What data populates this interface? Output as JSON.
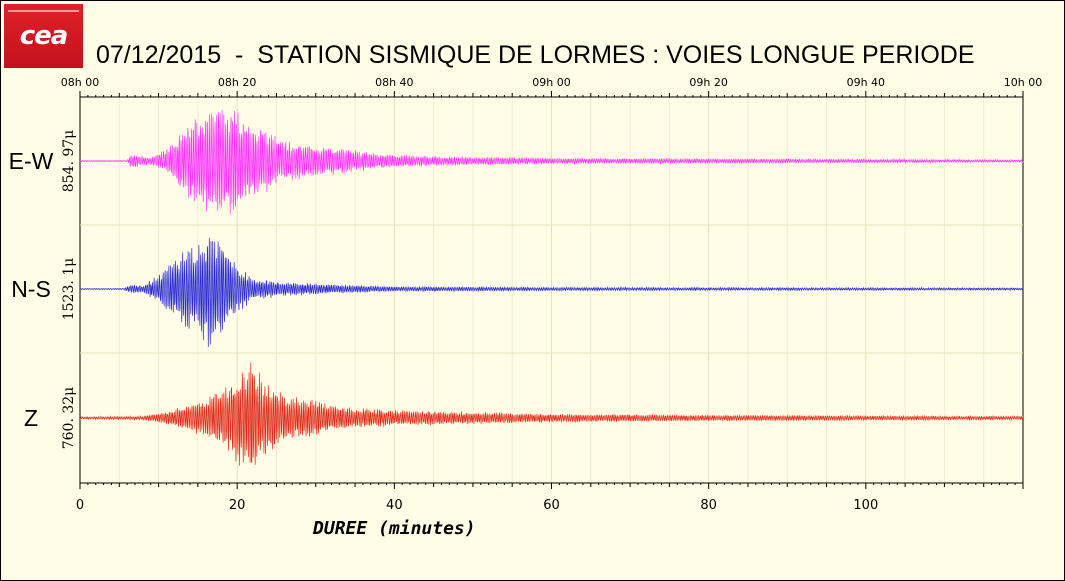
{
  "logo": {
    "text": "cea"
  },
  "title": "07/12/2015  -  STATION SISMIQUE DE LORMES : VOIES LONGUE PERIODE",
  "colors": {
    "background": "#fffde6",
    "ew": "#ff33ff",
    "ns": "#2a2ad4",
    "z": "#e02a1a"
  },
  "chart_data": {
    "type": "line",
    "xlabel": "DUREE (minutes)",
    "xlim": [
      0,
      120
    ],
    "x_ticks_bottom": [
      "0",
      "20",
      "40",
      "60",
      "80",
      "100"
    ],
    "x_ticks_top": [
      "08h 00",
      "08h 20",
      "08h 40",
      "09h 00",
      "09h 20",
      "09h 40",
      "10h 00"
    ],
    "grid": true,
    "series": [
      {
        "name": "E-W",
        "scale_label": "854. 97μ",
        "color": "#ff33ff",
        "envelope": [
          [
            0,
            0.01
          ],
          [
            6,
            0.01
          ],
          [
            6.5,
            0.12
          ],
          [
            9,
            0.06
          ],
          [
            11,
            0.2
          ],
          [
            14,
            0.65
          ],
          [
            16.5,
            0.9
          ],
          [
            18,
            1.0
          ],
          [
            20,
            0.85
          ],
          [
            22,
            0.65
          ],
          [
            26,
            0.35
          ],
          [
            30,
            0.25
          ],
          [
            34,
            0.22
          ],
          [
            38,
            0.12
          ],
          [
            46,
            0.08
          ],
          [
            60,
            0.05
          ],
          [
            80,
            0.04
          ],
          [
            100,
            0.03
          ],
          [
            120,
            0.02
          ]
        ]
      },
      {
        "name": "N-S",
        "scale_label": "1523. 1μ",
        "color": "#2a2ad4",
        "envelope": [
          [
            0,
            0.01
          ],
          [
            5.5,
            0.01
          ],
          [
            6.5,
            0.08
          ],
          [
            8,
            0.05
          ],
          [
            10,
            0.25
          ],
          [
            13,
            0.6
          ],
          [
            15.5,
            0.85
          ],
          [
            16.5,
            1.0
          ],
          [
            18,
            0.8
          ],
          [
            19.5,
            0.5
          ],
          [
            22,
            0.18
          ],
          [
            26,
            0.12
          ],
          [
            32,
            0.08
          ],
          [
            40,
            0.04
          ],
          [
            60,
            0.03
          ],
          [
            80,
            0.025
          ],
          [
            120,
            0.02
          ]
        ]
      },
      {
        "name": "Z",
        "scale_label": "760. 32μ",
        "color": "#e02a1a",
        "envelope": [
          [
            0,
            0.02
          ],
          [
            8,
            0.03
          ],
          [
            11,
            0.1
          ],
          [
            15,
            0.28
          ],
          [
            18,
            0.45
          ],
          [
            20,
            0.75
          ],
          [
            21.5,
            1.0
          ],
          [
            23,
            0.7
          ],
          [
            26,
            0.4
          ],
          [
            30,
            0.28
          ],
          [
            34,
            0.18
          ],
          [
            40,
            0.13
          ],
          [
            50,
            0.1
          ],
          [
            60,
            0.07
          ],
          [
            80,
            0.05
          ],
          [
            100,
            0.04
          ],
          [
            120,
            0.03
          ]
        ]
      }
    ]
  }
}
